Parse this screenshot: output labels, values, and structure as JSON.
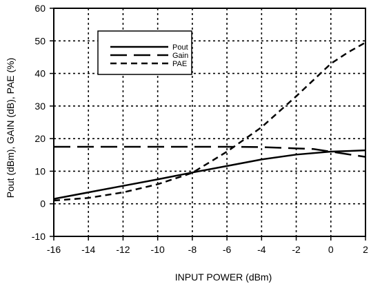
{
  "chart_data": {
    "type": "line",
    "xlabel": "INPUT POWER (dBm)",
    "ylabel": "Pout (dBm), GAIN (dB), PAE (%)",
    "xlim": [
      -16,
      2
    ],
    "ylim": [
      -10,
      60
    ],
    "x_ticks": [
      -16,
      -14,
      -12,
      -10,
      -8,
      -6,
      -4,
      -2,
      0,
      2
    ],
    "y_ticks": [
      -10,
      0,
      10,
      20,
      30,
      40,
      50,
      60
    ],
    "x_tick_labels": [
      "-16",
      "-14",
      "-12",
      "-10",
      "-8",
      "-6",
      "-4",
      "-2",
      "0",
      "2"
    ],
    "y_tick_labels": [
      "-10",
      "0",
      "10",
      "20",
      "30",
      "40",
      "50",
      "60"
    ],
    "grid": true,
    "legend_position": "top-left",
    "series": [
      {
        "name": "Pout",
        "style": "solid",
        "x": [
          -16,
          -14,
          -12,
          -10,
          -8,
          -6,
          -4,
          -2,
          0,
          1,
          2
        ],
        "y": [
          1.5,
          3.5,
          5.5,
          7.5,
          9.6,
          11.6,
          13.6,
          15.1,
          16.0,
          16.2,
          16.4
        ]
      },
      {
        "name": "Gain",
        "style": "long-dash",
        "x": [
          -16,
          -12,
          -8,
          -6,
          -4,
          -2,
          -1,
          0,
          1,
          2
        ],
        "y": [
          17.5,
          17.5,
          17.5,
          17.5,
          17.4,
          17.0,
          16.8,
          16.0,
          15.2,
          14.4
        ]
      },
      {
        "name": "PAE",
        "style": "short-dash",
        "x": [
          -16,
          -14,
          -12,
          -10,
          -8,
          -6,
          -4,
          -2,
          0,
          1,
          2
        ],
        "y": [
          1.0,
          1.8,
          3.5,
          6.0,
          9.5,
          16.0,
          23.5,
          33.0,
          43.0,
          46.5,
          49.5
        ]
      }
    ]
  }
}
